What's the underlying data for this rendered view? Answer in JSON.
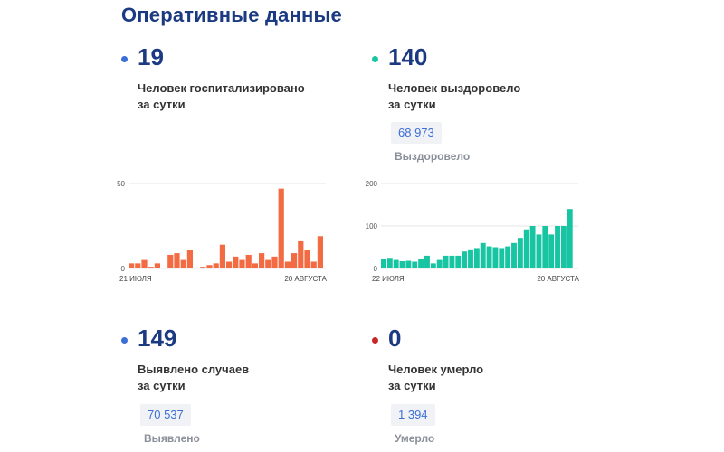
{
  "page": {
    "title": "Оперативные данные"
  },
  "stats": {
    "hospitalized": {
      "value": "19",
      "line1": "Человек госпитализировано",
      "line2": "за сутки",
      "dot_color": "#3c6fd6"
    },
    "recovered": {
      "value": "140",
      "line1": "Человек выздоровело",
      "line2": "за сутки",
      "total": "68 973",
      "total_label": "Выздоровело",
      "dot_color": "#17c5a3"
    },
    "detected": {
      "value": "149",
      "line1": "Выявлено случаев",
      "line2": "за сутки",
      "total": "70 537",
      "total_label": "Выявлено",
      "dot_color": "#3c6fd6"
    },
    "died": {
      "value": "0",
      "line1": "Человек умерло",
      "line2": "за сутки",
      "total": "1 394",
      "total_label": "Умерло",
      "dot_color": "#c62828"
    }
  },
  "chart_data": [
    {
      "type": "bar",
      "color": "#f26b43",
      "x_start_label": "21 ИЮЛЯ",
      "x_end_label": "20 АВГУСТА",
      "ylim": [
        0,
        50
      ],
      "yticks": [
        "0",
        "50"
      ],
      "values": [
        3,
        3,
        5,
        1,
        3,
        0,
        8,
        9,
        5,
        11,
        null,
        1,
        2,
        3,
        14,
        4,
        7,
        5,
        8,
        3,
        9,
        5,
        7,
        47,
        4,
        9,
        16,
        11,
        4,
        19
      ]
    },
    {
      "type": "bar",
      "color": "#17c5a3",
      "x_start_label": "22 ИЮЛЯ",
      "x_end_label": "20 АВГУСТА",
      "ylim": [
        0,
        200
      ],
      "yticks": [
        "0",
        "100",
        "200"
      ],
      "values": [
        22,
        25,
        20,
        17,
        18,
        16,
        22,
        30,
        12,
        20,
        30,
        30,
        30,
        40,
        45,
        48,
        60,
        52,
        50,
        48,
        52,
        60,
        72,
        92,
        100,
        80,
        100,
        80,
        100,
        100,
        140
      ]
    }
  ]
}
